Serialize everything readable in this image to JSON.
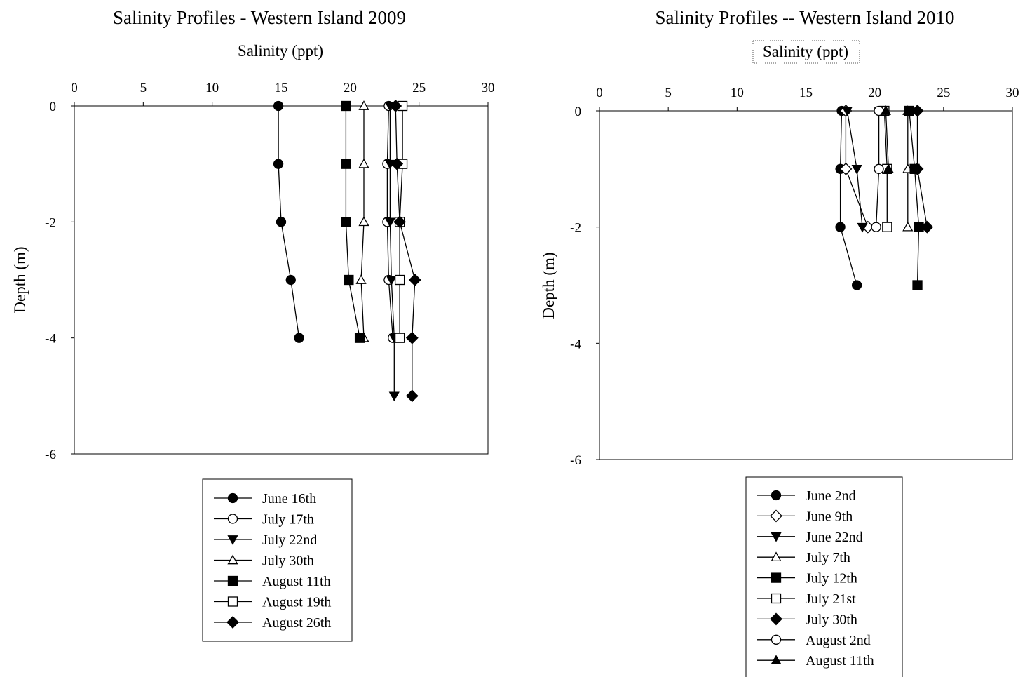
{
  "chart_data": [
    {
      "type": "line",
      "title": "Salinity Profiles - Western Island 2009",
      "xlabel": "Salinity (ppt)",
      "ylabel": "Depth (m)",
      "xlim": [
        0,
        30
      ],
      "ylim": [
        -6,
        0
      ],
      "x_ticks": [
        "0",
        "5",
        "10",
        "15",
        "20",
        "25",
        "30"
      ],
      "y_ticks": [
        "0",
        "-2",
        "-4",
        "-6"
      ],
      "legend": "bottom-center",
      "series": [
        {
          "name": "June 16th",
          "marker": "circle",
          "filled": true,
          "points": [
            [
              14.8,
              0
            ],
            [
              14.8,
              -1
            ],
            [
              15.0,
              -2
            ],
            [
              15.7,
              -3
            ],
            [
              16.3,
              -4
            ]
          ]
        },
        {
          "name": "July 17th",
          "marker": "circle",
          "filled": false,
          "points": [
            [
              22.8,
              0
            ],
            [
              22.7,
              -1
            ],
            [
              22.7,
              -2
            ],
            [
              22.8,
              -3
            ],
            [
              23.1,
              -4
            ]
          ]
        },
        {
          "name": "July 22nd",
          "marker": "triangle-down",
          "filled": true,
          "points": [
            [
              22.9,
              0
            ],
            [
              22.9,
              -1
            ],
            [
              22.9,
              -2
            ],
            [
              23.0,
              -3
            ],
            [
              23.2,
              -4
            ],
            [
              23.2,
              -5
            ]
          ]
        },
        {
          "name": "July 30th",
          "marker": "triangle-up",
          "filled": false,
          "points": [
            [
              21.0,
              0
            ],
            [
              21.0,
              -1
            ],
            [
              21.0,
              -2
            ],
            [
              20.8,
              -3
            ],
            [
              21.0,
              -4
            ]
          ]
        },
        {
          "name": "August 11th",
          "marker": "square",
          "filled": true,
          "points": [
            [
              19.7,
              0
            ],
            [
              19.7,
              -1
            ],
            [
              19.7,
              -2
            ],
            [
              19.9,
              -3
            ],
            [
              20.7,
              -4
            ]
          ]
        },
        {
          "name": "August 19th",
          "marker": "square",
          "filled": false,
          "points": [
            [
              23.8,
              0
            ],
            [
              23.8,
              -1
            ],
            [
              23.6,
              -2
            ],
            [
              23.6,
              -3
            ],
            [
              23.6,
              -4
            ]
          ]
        },
        {
          "name": "August 26th",
          "marker": "diamond",
          "filled": true,
          "points": [
            [
              23.3,
              0
            ],
            [
              23.4,
              -1
            ],
            [
              23.6,
              -2
            ],
            [
              24.7,
              -3
            ],
            [
              24.5,
              -4
            ],
            [
              24.5,
              -5
            ]
          ]
        }
      ]
    },
    {
      "type": "line",
      "title": "Salinity Profiles -- Western Island 2010",
      "xlabel": "Salinity (ppt)",
      "ylabel": "Depth (m)",
      "xlim": [
        0,
        30
      ],
      "ylim": [
        -6,
        0
      ],
      "x_ticks": [
        "0",
        "5",
        "10",
        "15",
        "20",
        "25",
        "30"
      ],
      "y_ticks": [
        "0",
        "-2",
        "-4",
        "-6"
      ],
      "legend": "bottom-center",
      "series": [
        {
          "name": "June 2nd",
          "marker": "circle",
          "filled": true,
          "points": [
            [
              17.6,
              0
            ],
            [
              17.5,
              -1
            ],
            [
              17.5,
              -2
            ],
            [
              18.7,
              -3
            ]
          ]
        },
        {
          "name": "June 9th",
          "marker": "diamond",
          "filled": false,
          "points": [
            [
              17.9,
              0
            ],
            [
              17.9,
              -1
            ],
            [
              19.5,
              -2
            ]
          ]
        },
        {
          "name": "June 22nd",
          "marker": "triangle-down",
          "filled": true,
          "points": [
            [
              18.0,
              0
            ],
            [
              18.7,
              -1
            ],
            [
              19.1,
              -2
            ]
          ]
        },
        {
          "name": "July 7th",
          "marker": "triangle-up",
          "filled": false,
          "points": [
            [
              22.4,
              0
            ],
            [
              22.4,
              -1
            ],
            [
              22.4,
              -2
            ]
          ]
        },
        {
          "name": "July 12th",
          "marker": "square",
          "filled": true,
          "points": [
            [
              22.5,
              0
            ],
            [
              22.9,
              -1
            ],
            [
              23.2,
              -2
            ],
            [
              23.1,
              -3
            ]
          ]
        },
        {
          "name": "July 21st",
          "marker": "square",
          "filled": false,
          "points": [
            [
              20.7,
              0
            ],
            [
              20.9,
              -1
            ],
            [
              20.9,
              -2
            ]
          ]
        },
        {
          "name": "July 30th",
          "marker": "diamond",
          "filled": true,
          "points": [
            [
              23.1,
              0
            ],
            [
              23.1,
              -1
            ],
            [
              23.8,
              -2
            ]
          ]
        },
        {
          "name": "August 2nd",
          "marker": "circle",
          "filled": false,
          "points": [
            [
              20.3,
              0
            ],
            [
              20.3,
              -1
            ],
            [
              20.1,
              -2
            ]
          ]
        },
        {
          "name": "August 11th",
          "marker": "triangle-up",
          "filled": true,
          "points": [
            [
              20.8,
              0
            ],
            [
              21.0,
              -1
            ]
          ]
        }
      ]
    }
  ]
}
